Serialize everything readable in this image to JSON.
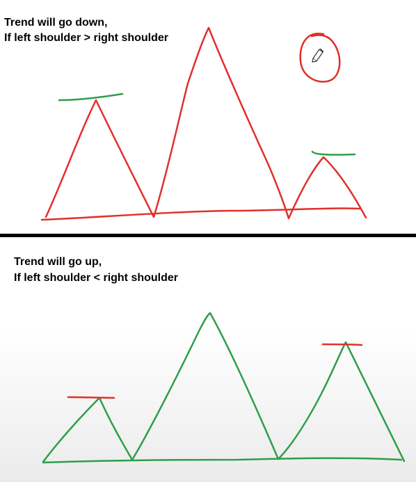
{
  "top_panel": {
    "line1": "Trend will go down,",
    "line2": "If left shoulder > right shoulder",
    "stroke_color": "#e0302a",
    "marker_color": "#2e9e4a"
  },
  "bottom_panel": {
    "line1": "Trend will go up,",
    "line2": "If left shoulder < right shoulder",
    "stroke_color": "#2e9e4a",
    "marker_color": "#e0302a"
  },
  "cursor": {
    "icon": "pencil-cursor-icon"
  }
}
